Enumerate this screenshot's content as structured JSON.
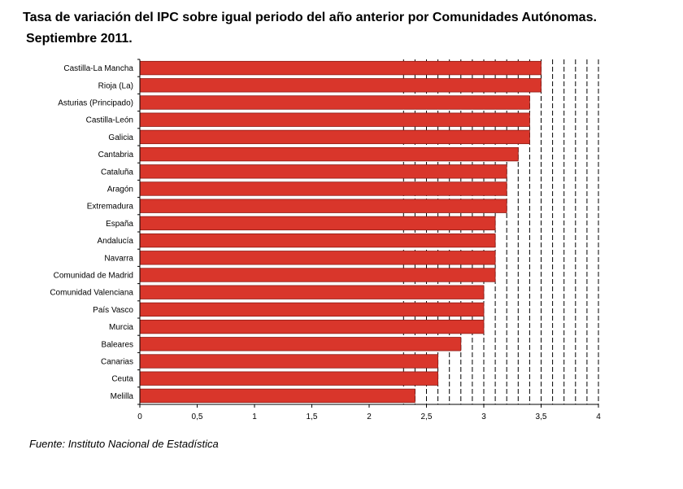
{
  "title": {
    "line1": "Tasa de variación del IPC sobre igual periodo del año anterior por Comunidades Autónomas.",
    "line2": "Septiembre 2011."
  },
  "source": "Fuente: Instituto Nacional de Estadística",
  "chart_data": {
    "type": "bar",
    "orientation": "horizontal",
    "categories": [
      "Castilla-La Mancha",
      "Rioja (La)",
      "Asturias (Principado)",
      "Castilla-León",
      "Galicia",
      "Cantabria",
      "Cataluña",
      "Aragón",
      "Extremadura",
      "España",
      "Andalucía",
      "Navarra",
      "Comunidad de Madrid",
      "Comunidad Valenciana",
      "País Vasco",
      "Murcia",
      "Baleares",
      "Canarias",
      "Ceuta",
      "Melilla"
    ],
    "values": [
      3.5,
      3.5,
      3.4,
      3.4,
      3.4,
      3.3,
      3.2,
      3.2,
      3.2,
      3.1,
      3.1,
      3.1,
      3.1,
      3.0,
      3.0,
      3.0,
      2.8,
      2.6,
      2.6,
      2.4
    ],
    "xlim": [
      0,
      4
    ],
    "xticks": [
      "0",
      "0,5",
      "1",
      "1,5",
      "2",
      "2,5",
      "3",
      "3,5",
      "4"
    ],
    "bar_color": "#d9362b",
    "bar_edge_color": "#8c1a14",
    "grid": "dashed vertical lines every 0.1 from 2.3 to 4",
    "legend": "none"
  }
}
